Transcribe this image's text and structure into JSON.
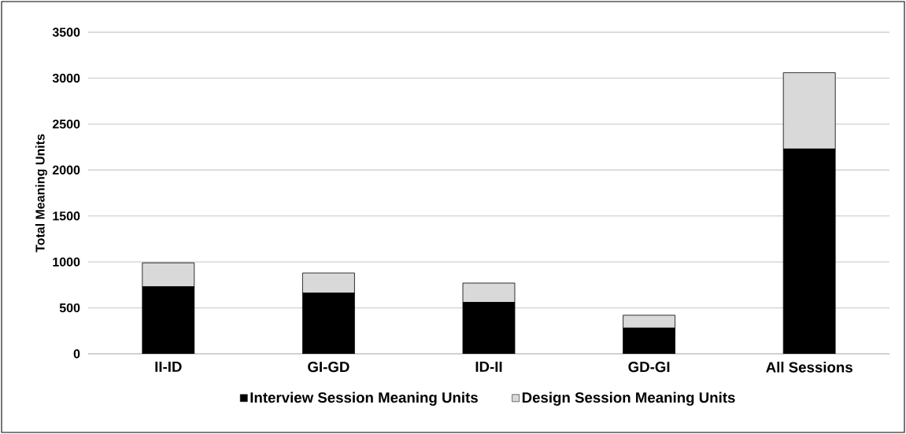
{
  "chart_data": {
    "type": "bar",
    "stacked": true,
    "ylabel": "Total Meaning Units",
    "categories": [
      "II-ID",
      "GI-GD",
      "ID-II",
      "GD-GI",
      "All Sessions"
    ],
    "series": [
      {
        "name": "Interview Session Meaning Units",
        "color": "#000000",
        "values": [
          730,
          660,
          560,
          280,
          2230
        ]
      },
      {
        "name": "Design Session Meaning Units",
        "color": "#d9d9d9",
        "values": [
          260,
          220,
          210,
          140,
          830
        ]
      }
    ],
    "ylim": [
      0,
      3500
    ],
    "yticks": [
      0,
      500,
      1000,
      1500,
      2000,
      2500,
      3000,
      3500
    ],
    "grid": "y",
    "legend": "bottom"
  }
}
